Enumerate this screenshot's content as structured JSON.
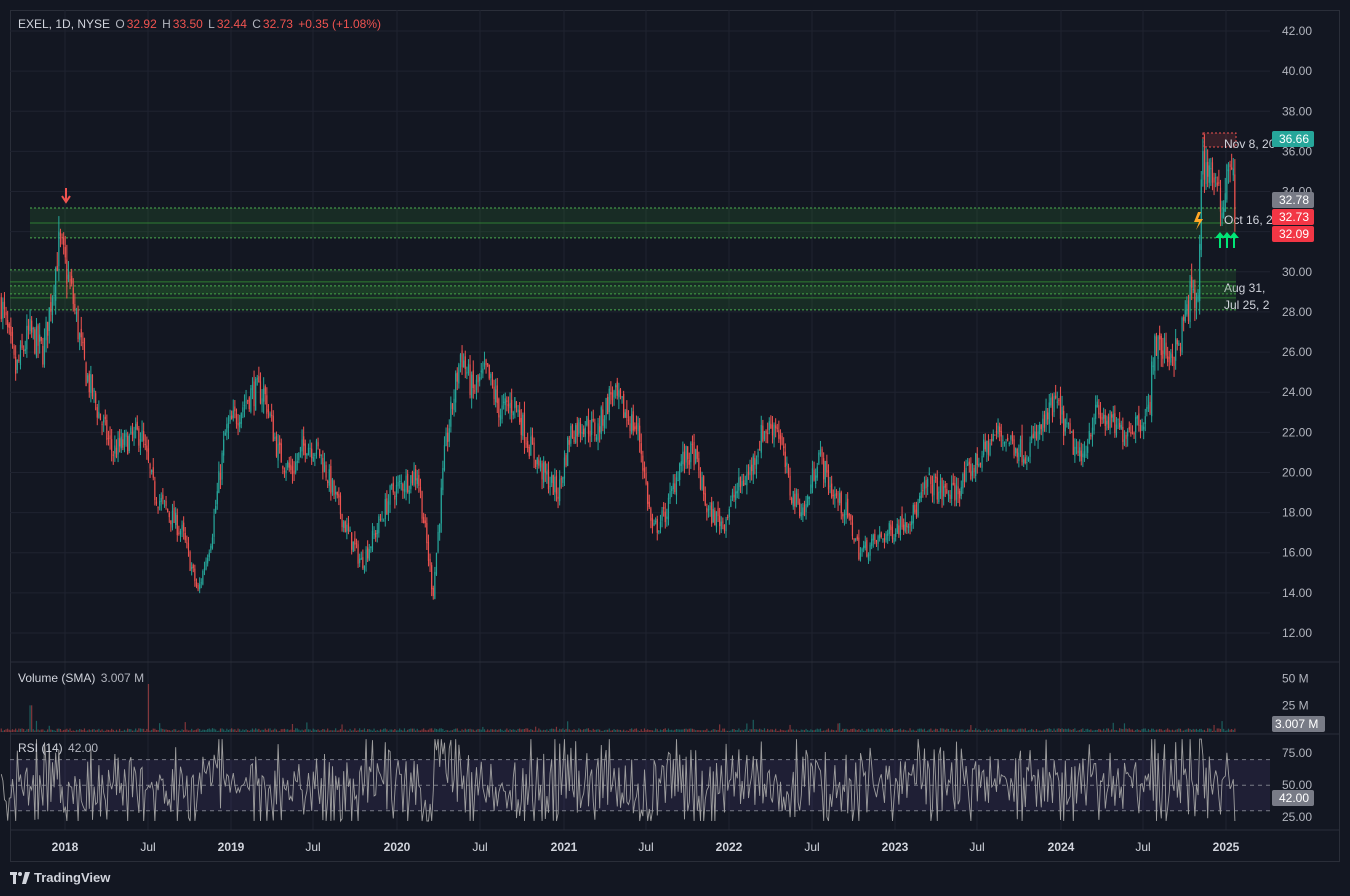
{
  "legend": {
    "symbol": "EXEL, 1D, NYSE",
    "o_label": "O",
    "o": "32.92",
    "h_label": "H",
    "h": "33.50",
    "l_label": "L",
    "l": "32.44",
    "c_label": "C",
    "c": "32.73",
    "change": "+0.35 (+1.08%)"
  },
  "volume_legend": {
    "label": "Volume (SMA)",
    "value": "3.007 M"
  },
  "rsi_legend": {
    "label": "RSI (14)",
    "value": "42.00"
  },
  "brand": "TradingView",
  "colors": {
    "bg": "#131722",
    "grid": "#1f2330",
    "up": "#26a69a",
    "down": "#ef5350",
    "zone": "#1b5e20",
    "rsi_band": "#7e57c2"
  },
  "chart_data": [
    {
      "type": "candlestick",
      "title": "EXEL, 1D, NYSE",
      "y_ticks": [
        "12.00",
        "14.00",
        "16.00",
        "18.00",
        "20.00",
        "22.00",
        "24.00",
        "26.00",
        "28.00",
        "30.00",
        "32.00",
        "34.00",
        "36.00",
        "38.00",
        "40.00",
        "42.00"
      ],
      "ylim": [
        11,
        43
      ],
      "x_ticks": [
        "2018",
        "Jul",
        "2019",
        "Jul",
        "2020",
        "Jul",
        "2021",
        "Jul",
        "2022",
        "Jul",
        "2023",
        "Jul",
        "2024",
        "Jul",
        "2025"
      ],
      "x_tick_dates": [
        "2018-01-01",
        "2018-07-01",
        "2019-01-01",
        "2019-07-01",
        "2020-01-01",
        "2020-07-01",
        "2021-01-01",
        "2021-07-01",
        "2022-01-01",
        "2022-07-01",
        "2023-01-01",
        "2023-07-01",
        "2024-01-01",
        "2024-07-01",
        "2025-01-01"
      ],
      "price_path": [
        [
          "2017-08-15",
          28.5
        ],
        [
          "2017-09-15",
          25
        ],
        [
          "2017-10-15",
          27
        ],
        [
          "2017-11-15",
          26
        ],
        [
          "2017-12-20",
          31.5
        ],
        [
          "2018-01-15",
          29
        ],
        [
          "2018-02-15",
          25
        ],
        [
          "2018-03-15",
          23
        ],
        [
          "2018-04-15",
          21
        ],
        [
          "2018-05-15",
          21.5
        ],
        [
          "2018-06-15",
          22
        ],
        [
          "2018-07-15",
          19
        ],
        [
          "2018-08-15",
          18
        ],
        [
          "2018-09-15",
          17
        ],
        [
          "2018-10-20",
          14
        ],
        [
          "2018-11-20",
          17
        ],
        [
          "2018-12-20",
          22
        ],
        [
          "2019-02-15",
          24
        ],
        [
          "2019-03-15",
          24
        ],
        [
          "2019-04-15",
          21
        ],
        [
          "2019-05-15",
          20
        ],
        [
          "2019-06-15",
          21.5
        ],
        [
          "2019-07-15",
          21
        ],
        [
          "2019-08-15",
          19
        ],
        [
          "2019-09-15",
          17
        ],
        [
          "2019-10-15",
          15.5
        ],
        [
          "2019-11-15",
          17
        ],
        [
          "2019-12-20",
          19
        ],
        [
          "2020-02-15",
          20
        ],
        [
          "2020-03-20",
          14
        ],
        [
          "2020-04-15",
          21
        ],
        [
          "2020-05-20",
          26
        ],
        [
          "2020-06-15",
          24
        ],
        [
          "2020-07-15",
          25
        ],
        [
          "2020-08-15",
          23
        ],
        [
          "2020-09-15",
          23.5
        ],
        [
          "2020-10-15",
          21.5
        ],
        [
          "2020-11-15",
          20
        ],
        [
          "2020-12-20",
          19
        ],
        [
          "2021-01-15",
          22
        ],
        [
          "2021-02-15",
          22.5
        ],
        [
          "2021-03-15",
          22
        ],
        [
          "2021-04-15",
          24
        ],
        [
          "2021-05-15",
          23
        ],
        [
          "2021-06-15",
          22
        ],
        [
          "2021-07-15",
          17
        ],
        [
          "2021-08-15",
          18
        ],
        [
          "2021-09-15",
          20.5
        ],
        [
          "2021-10-15",
          21
        ],
        [
          "2021-11-15",
          18
        ],
        [
          "2021-12-20",
          17.5
        ],
        [
          "2022-01-15",
          19
        ],
        [
          "2022-02-15",
          20
        ],
        [
          "2022-03-15",
          22
        ],
        [
          "2022-04-15",
          22.5
        ],
        [
          "2022-05-15",
          19
        ],
        [
          "2022-06-15",
          18
        ],
        [
          "2022-07-15",
          21
        ],
        [
          "2022-08-15",
          19
        ],
        [
          "2022-09-15",
          18
        ],
        [
          "2022-10-15",
          16
        ],
        [
          "2022-11-15",
          16.5
        ],
        [
          "2022-12-20",
          17
        ],
        [
          "2023-01-15",
          17.5
        ],
        [
          "2023-02-15",
          18
        ],
        [
          "2023-03-15",
          19.5
        ],
        [
          "2023-04-15",
          19
        ],
        [
          "2023-05-15",
          19
        ],
        [
          "2023-06-15",
          20
        ],
        [
          "2023-07-15",
          21
        ],
        [
          "2023-08-15",
          22
        ],
        [
          "2023-09-15",
          21.5
        ],
        [
          "2023-10-15",
          21
        ],
        [
          "2023-11-15",
          22
        ],
        [
          "2023-12-20",
          23.5
        ],
        [
          "2024-01-15",
          22
        ],
        [
          "2024-02-15",
          20.5
        ],
        [
          "2024-03-15",
          23
        ],
        [
          "2024-04-15",
          22.5
        ],
        [
          "2024-05-15",
          22
        ],
        [
          "2024-06-15",
          22.5
        ],
        [
          "2024-07-15",
          23
        ],
        [
          "2024-07-25",
          26.5
        ],
        [
          "2024-08-15",
          26
        ],
        [
          "2024-09-15",
          26
        ],
        [
          "2024-10-16",
          29
        ],
        [
          "2024-10-30",
          28
        ],
        [
          "2024-11-08",
          35.5
        ],
        [
          "2024-12-01",
          35
        ],
        [
          "2024-12-20",
          33
        ],
        [
          "2025-01-10",
          36
        ],
        [
          "2025-01-24",
          32.73
        ]
      ],
      "zones": [
        {
          "top": 32.78,
          "bottom": 32.09,
          "label": "Oct 16, 2"
        },
        {
          "top": 29.7,
          "bottom": 29.3,
          "label": "Aug 31, "
        },
        {
          "top": 28.9,
          "bottom": 28.5,
          "label": "Jul 25, 2"
        }
      ],
      "price_labels": [
        {
          "value": "36.66",
          "kind": "up"
        },
        {
          "value": "32.78",
          "kind": "gray"
        },
        {
          "value": "32.73",
          "kind": "down"
        },
        {
          "value": "32.09",
          "kind": "down"
        }
      ],
      "annotation_label": "Nov 8, 20"
    },
    {
      "type": "bar",
      "title": "Volume (SMA)",
      "y_ticks": [
        "50 M",
        "25 M"
      ],
      "ylim": [
        0,
        60
      ],
      "last_value_label": "3.007 M"
    },
    {
      "type": "line",
      "title": "RSI (14)",
      "y_ticks": [
        "75.00",
        "50.00",
        "25.00"
      ],
      "ylim": [
        15,
        90
      ],
      "band": [
        30,
        70
      ],
      "last_value_label": "42.00"
    }
  ]
}
